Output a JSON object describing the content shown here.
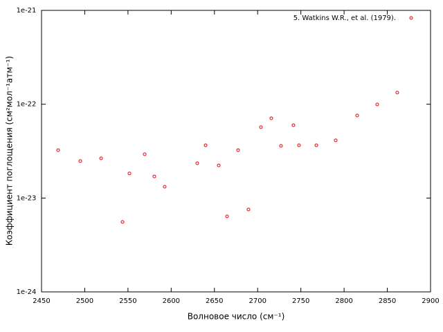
{
  "chart_data": {
    "type": "scatter",
    "x_label": "Волновое число (см⁻¹)",
    "y_label": "Коэффициент поглощения (см²мол⁻¹атм⁻¹)",
    "xlim": [
      2450,
      2900
    ],
    "xticks": [
      2450,
      2500,
      2550,
      2600,
      2650,
      2700,
      2750,
      2800,
      2850,
      2900
    ],
    "ylim": [
      1e-24,
      1e-21
    ],
    "yticks": [
      {
        "value": 1e-24,
        "label": "1e-24"
      },
      {
        "value": 1e-23,
        "label": "1e-23"
      },
      {
        "value": 1e-22,
        "label": "1e-22"
      },
      {
        "value": 1e-21,
        "label": "1e-21"
      }
    ],
    "y_log": true,
    "legend": "upper right",
    "series": [
      {
        "name": "5. Watkins W.R., et al. (1979).",
        "color": "#e8000b",
        "x": [
          2469.2,
          2494.8,
          2518.9,
          2543.7,
          2551.7,
          2569.3,
          2580.5,
          2592.5,
          2630.1,
          2639.8,
          2655,
          2664.6,
          2677.4,
          2689.4,
          2703.8,
          2715.8,
          2727,
          2741.4,
          2747.8,
          2767.9,
          2790.3,
          2815.1,
          2838.3,
          2861.5
        ],
        "values": [
          3.24e-23,
          2.48e-23,
          2.65e-23,
          5.56e-24,
          1.83e-23,
          2.93e-23,
          1.7e-23,
          1.32e-23,
          2.35e-23,
          3.65e-23,
          2.23e-23,
          6.37e-24,
          3.24e-23,
          7.55e-24,
          5.69e-23,
          7.08e-23,
          3.6e-23,
          5.98e-23,
          3.65e-23,
          3.65e-23,
          4.12e-23,
          7.58e-23,
          9.95e-23,
          1.33e-22
        ]
      }
    ]
  }
}
